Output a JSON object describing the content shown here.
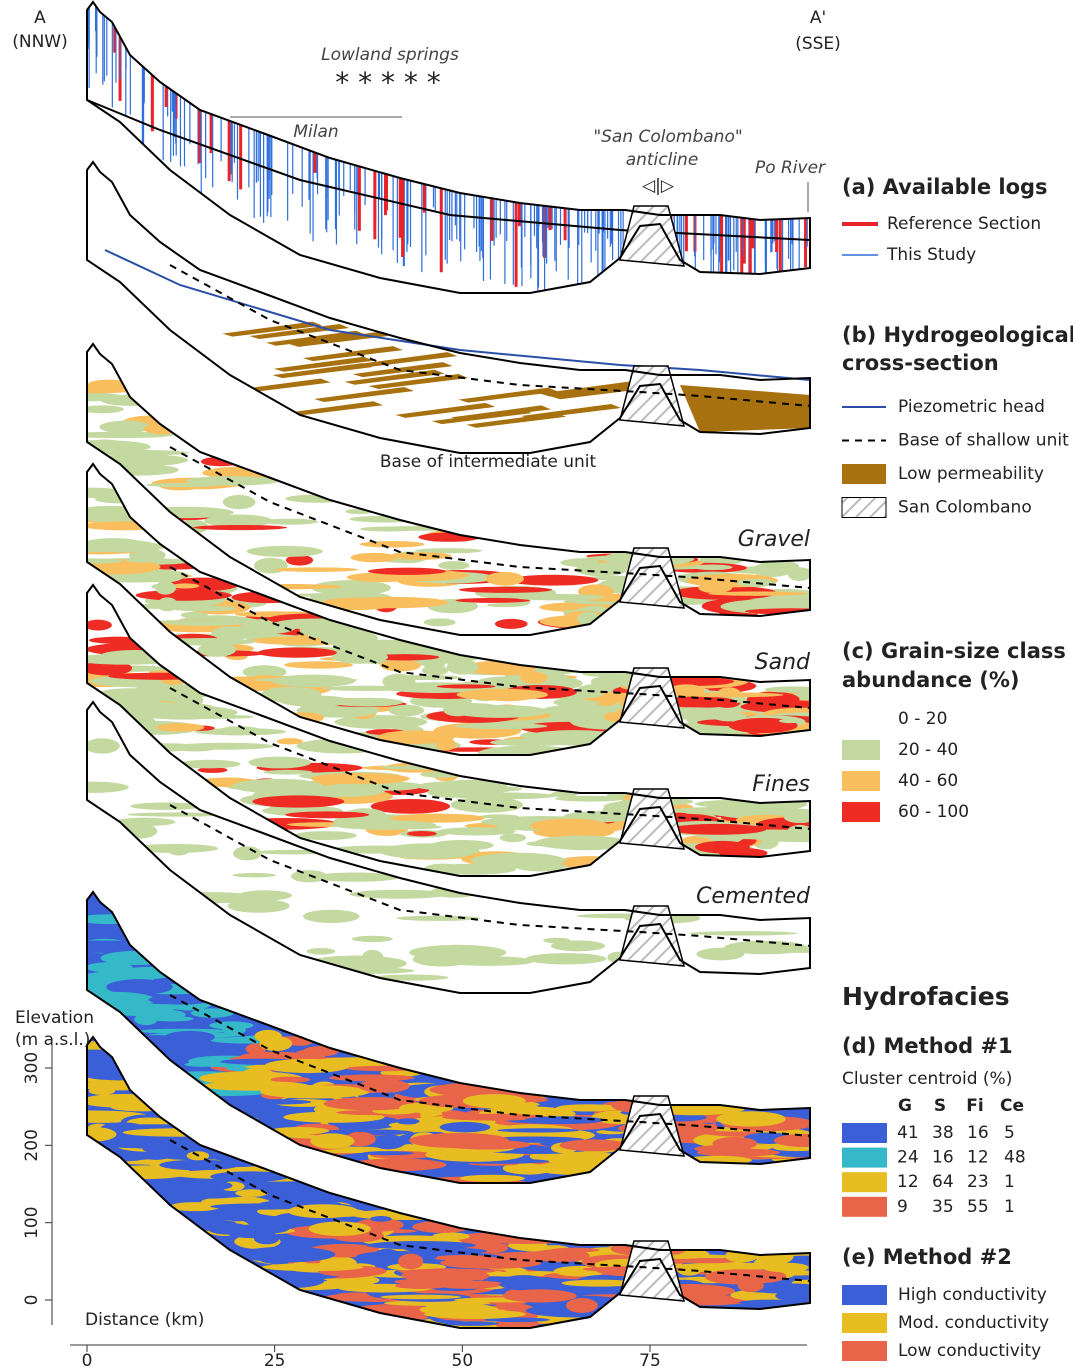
{
  "section_labels": {
    "start": "A",
    "start_dir": "(NNW)",
    "end": "A'",
    "end_dir": "(SSE)",
    "springs": "Lowland springs",
    "springs_marker": "* * * * *",
    "milan": "Milan",
    "anticline": "\"San Colombano\"",
    "anticline_word": "anticline",
    "anticline_symbol": "◁|▷",
    "po": "Po River",
    "base_intermediate": "Base of intermediate unit"
  },
  "panel_labels": [
    "Gravel",
    "Sand",
    "Fines",
    "Cemented"
  ],
  "legend": {
    "a": {
      "title": "(a) Available logs",
      "items": [
        {
          "label": "Reference Section",
          "color": "#e8242a"
        },
        {
          "label": "This Study",
          "color": "#2f6fdc"
        }
      ]
    },
    "b": {
      "title": [
        "(b) Hydrogeological",
        "cross-section"
      ],
      "items": [
        {
          "label": "Piezometric head",
          "color": "#2b4ea8"
        },
        {
          "label": "Base of shallow unit",
          "color": "#000000"
        },
        {
          "label": "Low permeability",
          "color": "#a8710f"
        },
        {
          "label": "San Colombano",
          "color": "#cccccc"
        }
      ]
    },
    "c": {
      "title": [
        "(c) Grain-size class",
        "abundance (%)"
      ],
      "items": [
        {
          "label": "0 - 20",
          "color": "#ffffff"
        },
        {
          "label": "20 - 40",
          "color": "#c3d9a0"
        },
        {
          "label": "40 - 60",
          "color": "#f9be5e"
        },
        {
          "label": "60 - 100",
          "color": "#ee2c24"
        }
      ]
    },
    "hydrofacies": "Hydrofacies",
    "d": {
      "title": "(d) Method #1",
      "subtitle": "Cluster centroid (%)",
      "columns": [
        "G",
        "S",
        "Fi",
        "Ce"
      ],
      "rows": [
        {
          "color": "#3a5fd6",
          "values": [
            41,
            38,
            16,
            5
          ]
        },
        {
          "color": "#35b9c9",
          "values": [
            24,
            16,
            12,
            48
          ]
        },
        {
          "color": "#e8bd22",
          "values": [
            12,
            64,
            23,
            1
          ]
        },
        {
          "color": "#e9654a",
          "values": [
            9,
            35,
            55,
            1
          ]
        }
      ]
    },
    "e": {
      "title": "(e) Method #2",
      "items": [
        {
          "label": "High conductivity",
          "color": "#3a5fd6"
        },
        {
          "label": "Mod. conductivity",
          "color": "#e8bd22"
        },
        {
          "label": "Low conductivity",
          "color": "#e9654a"
        }
      ]
    }
  },
  "axes": {
    "y_label": [
      "Elevation",
      "(m a.s.l.)"
    ],
    "ylim": [
      -30,
      340
    ],
    "yticks": [
      0,
      100,
      200,
      300
    ],
    "x_label": "Distance (km)",
    "xlim": [
      -2,
      96
    ],
    "xticks": [
      0,
      25,
      50,
      75
    ]
  }
}
